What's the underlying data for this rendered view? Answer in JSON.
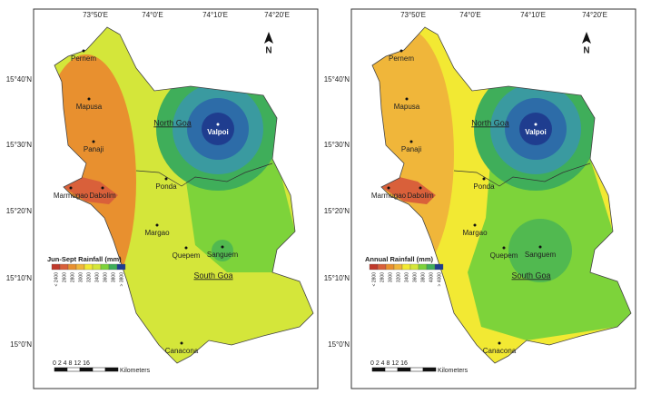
{
  "panels": [
    {
      "legend_title": "Jun-Sept Rainfall (mm)",
      "classes": [
        {
          "label": "< 2400",
          "color": "#c0392b"
        },
        {
          "label": "2600",
          "color": "#d9603a"
        },
        {
          "label": "2800",
          "color": "#e8902f"
        },
        {
          "label": "3000",
          "color": "#f0b63a"
        },
        {
          "label": "3200",
          "color": "#f2e933"
        },
        {
          "label": "3400",
          "color": "#d4e63a"
        },
        {
          "label": "3600",
          "color": "#7dd33a"
        },
        {
          "label": "3800",
          "color": "#3fae5a"
        },
        {
          "label": "> 3800",
          "color": "#1f3d8f"
        }
      ],
      "lon_labels": [
        "73°50'E",
        "74°0'E",
        "74°10'E",
        "74°20'E"
      ],
      "lat_labels": [
        "15°40'N",
        "15°30'N",
        "15°20'N",
        "15°10'N",
        "15°0'N"
      ],
      "places": [
        "Pernem",
        "Mapusa",
        "Panaji",
        "Marmugao",
        "Dabolim",
        "Ponda",
        "Margao",
        "Quepem",
        "Sanguem",
        "Canacona",
        "Valpoi"
      ],
      "districts": [
        "North Goa",
        "South Goa"
      ],
      "scale": "0 2 4   8  12  16",
      "scale_unit": "Kilometers",
      "north": "N"
    },
    {
      "legend_title": "Annual Rainfall (mm)",
      "classes": [
        {
          "label": "< 2800",
          "color": "#c0392b"
        },
        {
          "label": "2800",
          "color": "#d9603a"
        },
        {
          "label": "3000",
          "color": "#e8902f"
        },
        {
          "label": "3200",
          "color": "#f0b63a"
        },
        {
          "label": "3400",
          "color": "#f2e933"
        },
        {
          "label": "3600",
          "color": "#d4e63a"
        },
        {
          "label": "3800",
          "color": "#7dd33a"
        },
        {
          "label": "4000",
          "color": "#3fae5a"
        },
        {
          "label": "> 4000",
          "color": "#1f3d8f"
        }
      ],
      "lon_labels": [
        "73°50'E",
        "74°0'E",
        "74°10'E",
        "74°20'E"
      ],
      "lat_labels": [
        "15°40'N",
        "15°30'N",
        "15°20'N",
        "15°10'N",
        "15°0'N"
      ],
      "places": [
        "Pernem",
        "Mapusa",
        "Panaji",
        "Marmugao",
        "Dabolim",
        "Ponda",
        "Margao",
        "Quepem",
        "Sanguem",
        "Canacona",
        "Valpoi"
      ],
      "districts": [
        "North Goa",
        "South Goa"
      ],
      "scale": "0 2 4   8  12  16",
      "scale_unit": "Kilometers",
      "north": "N"
    }
  ]
}
